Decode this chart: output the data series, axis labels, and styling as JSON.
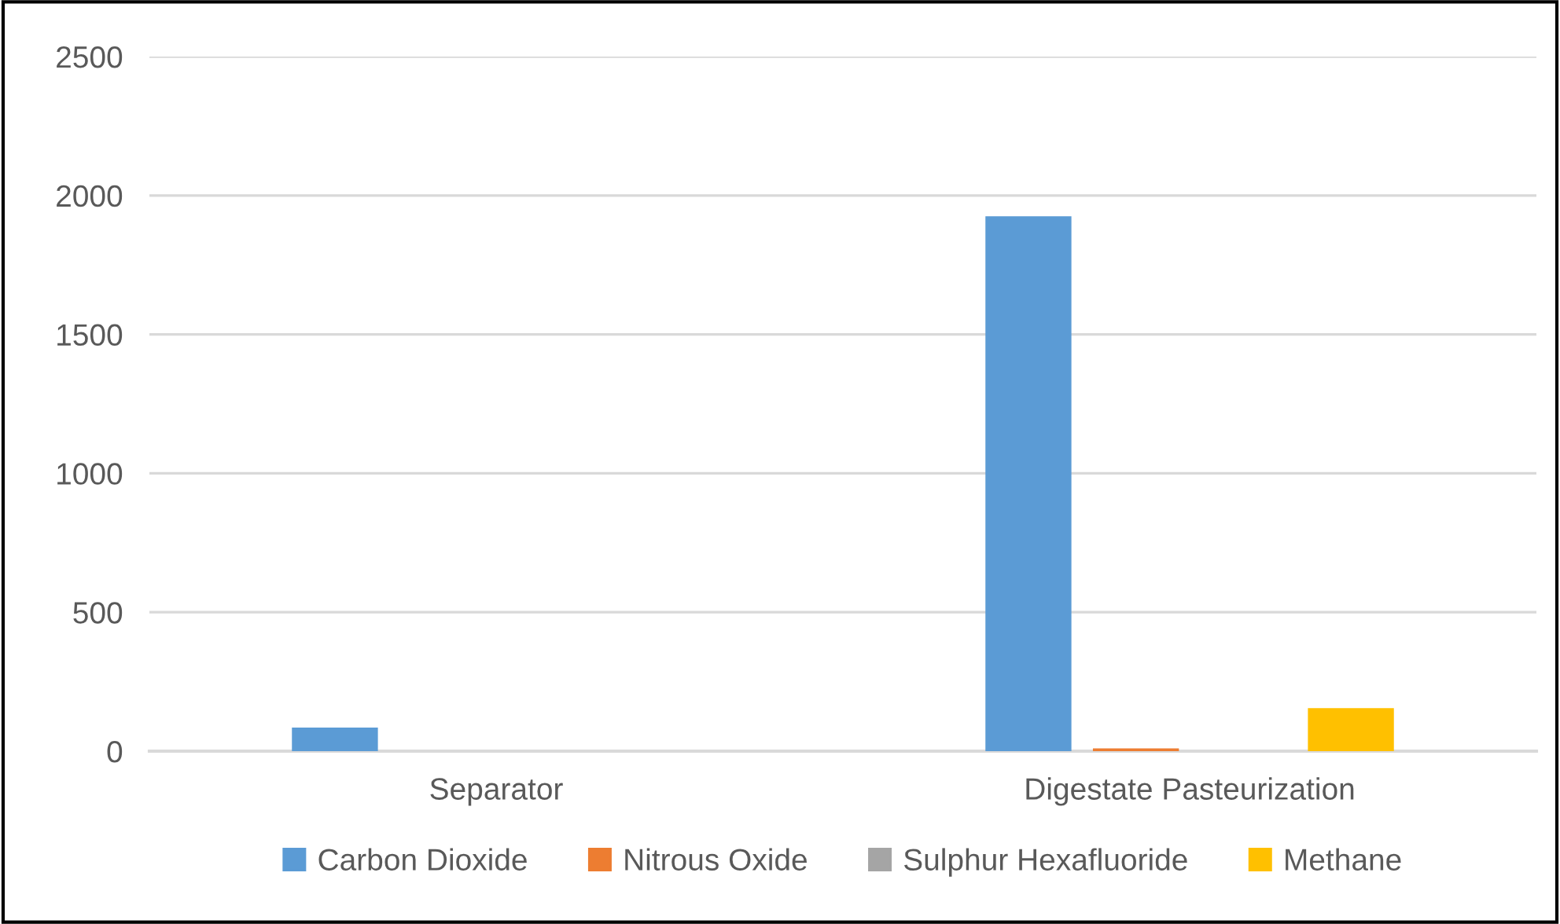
{
  "chart_data": {
    "type": "bar",
    "categories": [
      "Separator",
      "Digestate Pasteurization"
    ],
    "series": [
      {
        "name": "Carbon Dioxide",
        "color": "#5b9bd5",
        "values": [
          85,
          1925
        ]
      },
      {
        "name": "Nitrous Oxide",
        "color": "#ed7d31",
        "values": [
          0,
          10
        ]
      },
      {
        "name": "Sulphur Hexafluoride",
        "color": "#a5a5a5",
        "values": [
          0,
          0
        ]
      },
      {
        "name": "Methane",
        "color": "#ffc000",
        "values": [
          0,
          155
        ]
      }
    ],
    "ylim": [
      0,
      2500
    ],
    "yticks": [
      0,
      500,
      1000,
      1500,
      2000,
      2500
    ],
    "grid": "y",
    "legend": "bottom"
  }
}
